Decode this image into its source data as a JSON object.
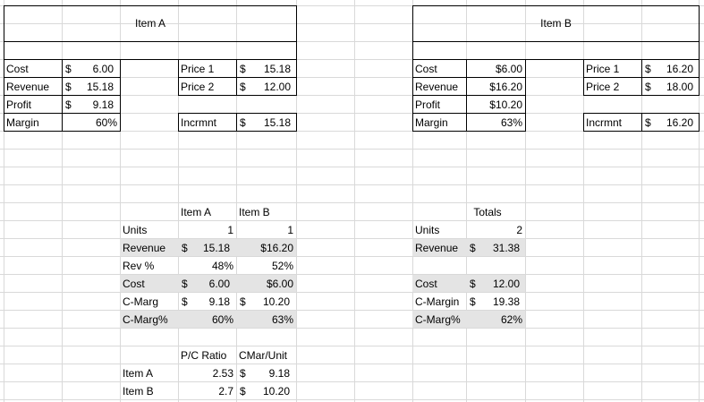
{
  "item_a_box": {
    "title": "Item A",
    "rows": [
      {
        "label": "Cost",
        "symbol": "$",
        "value": "6.00"
      },
      {
        "label": "Revenue",
        "symbol": "$",
        "value": "15.18"
      },
      {
        "label": "Profit",
        "symbol": "$",
        "value": "9.18"
      },
      {
        "label": "Margin",
        "value": "60%"
      }
    ],
    "prices": [
      {
        "label": "Price 1",
        "symbol": "$",
        "value": "15.18"
      },
      {
        "label": "Price 2",
        "symbol": "$",
        "value": "12.00"
      }
    ],
    "incrmnt": {
      "label": "Incrmnt",
      "symbol": "$",
      "value": "15.18"
    }
  },
  "item_b_box": {
    "title": "Item B",
    "rows": [
      {
        "label": "Cost",
        "value": "$6.00"
      },
      {
        "label": "Revenue",
        "value": "$16.20"
      },
      {
        "label": "Profit",
        "value": "$10.20"
      },
      {
        "label": "Margin",
        "value": "63%"
      }
    ],
    "prices": [
      {
        "label": "Price 1",
        "symbol": "$",
        "value": "16.20"
      },
      {
        "label": "Price 2",
        "symbol": "$",
        "value": "18.00"
      }
    ],
    "incrmnt": {
      "label": "Incrmnt",
      "symbol": "$",
      "value": "16.20"
    }
  },
  "comparison": {
    "headers": [
      "Item A",
      "Item B"
    ],
    "rows": [
      {
        "label": "Units",
        "a": "1",
        "b": "1"
      },
      {
        "label": "Revenue",
        "a_symbol": "$",
        "a": "15.18",
        "b": "$16.20"
      },
      {
        "label": "Rev %",
        "a": "48%",
        "b": "52%"
      },
      {
        "label": "Cost",
        "a_symbol": "$",
        "a": "6.00",
        "b": "$6.00"
      },
      {
        "label": "C-Marg",
        "a_symbol": "$",
        "a": "9.18",
        "b_symbol": "$",
        "b": "10.20"
      },
      {
        "label": "C-Marg%",
        "a": "60%",
        "b": "63%"
      }
    ]
  },
  "totals": {
    "header": "Totals",
    "rows": [
      {
        "label": "Units",
        "value": "2"
      },
      {
        "label": "Revenue",
        "symbol": "$",
        "value": "31.38"
      },
      {
        "label": "",
        "value": ""
      },
      {
        "label": "Cost",
        "symbol": "$",
        "value": "12.00"
      },
      {
        "label": "C-Margin",
        "symbol": "$",
        "value": "19.38"
      },
      {
        "label": "C-Marg%",
        "value": "62%"
      }
    ]
  },
  "ratio_table": {
    "headers": [
      "P/C Ratio",
      "CMar/Unit"
    ],
    "rows": [
      {
        "label": "Item A",
        "ratio": "2.53",
        "symbol": "$",
        "value": "9.18"
      },
      {
        "label": "Item B",
        "ratio": "2.7",
        "symbol": "$",
        "value": "10.20"
      }
    ]
  }
}
